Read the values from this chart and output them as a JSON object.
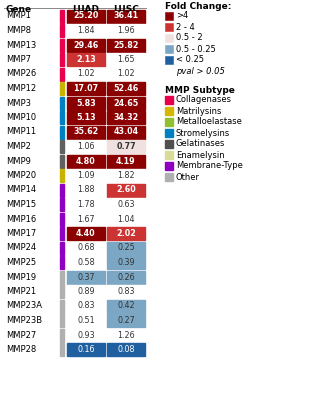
{
  "genes": [
    "MMP1",
    "MMP8",
    "MMP13",
    "MMP7",
    "MMP26",
    "MMP12",
    "MMP3",
    "MMP10",
    "MMP11",
    "MMP2",
    "MMP9",
    "MMP20",
    "MMP14",
    "MMP15",
    "MMP16",
    "MMP17",
    "MMP24",
    "MMP25",
    "MMP19",
    "MMP21",
    "MMP23A",
    "MMP23B",
    "MMP27",
    "MMP28"
  ],
  "luad": [
    25.2,
    1.84,
    29.46,
    2.13,
    1.02,
    17.07,
    5.83,
    5.13,
    35.62,
    1.06,
    4.8,
    1.09,
    1.88,
    1.78,
    1.67,
    4.4,
    0.68,
    0.58,
    0.37,
    0.89,
    0.83,
    0.51,
    0.93,
    0.16
  ],
  "lusc": [
    36.41,
    1.96,
    25.82,
    1.65,
    1.02,
    52.46,
    24.65,
    34.32,
    43.04,
    0.77,
    4.19,
    1.82,
    2.6,
    0.63,
    1.04,
    2.02,
    0.25,
    0.39,
    0.26,
    0.83,
    0.42,
    0.27,
    1.26,
    0.08
  ],
  "sig_luad": [
    true,
    false,
    true,
    true,
    false,
    true,
    true,
    true,
    true,
    false,
    true,
    false,
    false,
    false,
    false,
    true,
    false,
    false,
    true,
    false,
    false,
    false,
    false,
    true
  ],
  "sig_lusc": [
    true,
    false,
    true,
    false,
    false,
    true,
    true,
    true,
    true,
    true,
    true,
    false,
    true,
    false,
    false,
    true,
    true,
    true,
    true,
    false,
    true,
    true,
    false,
    true
  ],
  "subtype_colors": [
    "#e8004d",
    "#e8004d",
    "#e8004d",
    "#e8004d",
    "#e8004d",
    "#c8b400",
    "#0080c0",
    "#0080c0",
    "#0080c0",
    "#606060",
    "#606060",
    "#c8b400",
    "#9000c0",
    "#9000c0",
    "#9000c0",
    "#9000c0",
    "#9000c0",
    "#9000c0",
    "#b0b0b0",
    "#b0b0b0",
    "#b0b0b0",
    "#b0b0b0",
    "#b0b0b0",
    "#b0b0b0"
  ],
  "fc_legend": [
    [
      ">4",
      "#8b0000",
      "#ffffff"
    ],
    [
      "2 - 4",
      "#cc3333",
      "#ffffff"
    ],
    [
      "0.5 - 2",
      "#f0e0e0",
      "#333333"
    ],
    [
      "0.5 - 0.25",
      "#7ba7c4",
      "#333333"
    ],
    [
      "< 0.25",
      "#2060a0",
      "#ffffff"
    ],
    [
      "pval > 0.05",
      "#ffffff",
      "#333333"
    ]
  ],
  "subtype_legend": [
    [
      "Collagenases",
      "#e8004d"
    ],
    [
      "Matrilysins",
      "#d4b800"
    ],
    [
      "Metalloelastase",
      "#90c030"
    ],
    [
      "Stromelysins",
      "#0080c0"
    ],
    [
      "Gelatinases",
      "#505050"
    ],
    [
      "Enamelysin",
      "#d8dc98"
    ],
    [
      "Membrane-Type",
      "#9000c0"
    ],
    [
      "Other",
      "#b0b0b0"
    ]
  ],
  "background": "#ffffff"
}
